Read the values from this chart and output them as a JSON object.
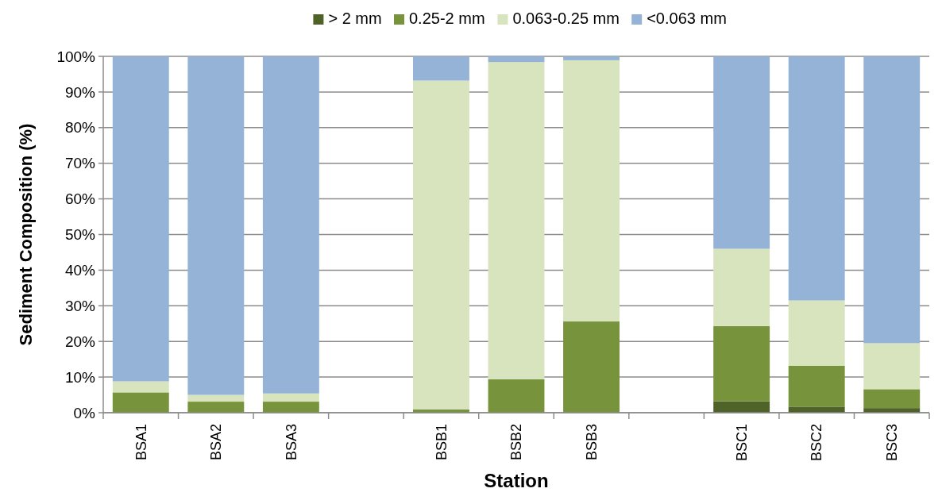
{
  "chart_data": {
    "type": "bar",
    "stacked": true,
    "xlabel": "Station",
    "ylabel": "Sediment Composition (%)",
    "categories": [
      "BSA1",
      "BSA2",
      "BSA3",
      null,
      "BSB1",
      "BSB2",
      "BSB3",
      null,
      "BSC1",
      "BSC2",
      "BSC3"
    ],
    "series": [
      {
        "name": "> 2 mm",
        "color": "#4f6228",
        "values": [
          null,
          0,
          0,
          null,
          0,
          0,
          0,
          null,
          3.2,
          1.7,
          1.3
        ]
      },
      {
        "name": "0.25-2 mm",
        "color": "#77933c",
        "values": [
          5.7,
          3.1,
          3.1,
          null,
          0.9,
          9.4,
          25.6,
          null,
          21.1,
          11.5,
          5.3
        ]
      },
      {
        "name": "0.063-0.25 mm",
        "color": "#d7e4bd",
        "values": [
          3.1,
          1.9,
          2.3,
          null,
          92.3,
          89.0,
          73.3,
          null,
          21.7,
          18.3,
          12.9
        ]
      },
      {
        "name": "<0.063 mm",
        "color": "#95b3d7",
        "values": [
          91.2,
          95.0,
          94.6,
          null,
          6.8,
          1.6,
          1.1,
          null,
          54.0,
          68.5,
          80.5
        ]
      }
    ],
    "ylim": [
      0,
      100
    ],
    "yticks": [
      {
        "value": 0,
        "label": "0%"
      },
      {
        "value": 10,
        "label": "10%"
      },
      {
        "value": 20,
        "label": "20%"
      },
      {
        "value": 30,
        "label": "30%"
      },
      {
        "value": 40,
        "label": "40%"
      },
      {
        "value": 50,
        "label": "50%"
      },
      {
        "value": 60,
        "label": "60%"
      },
      {
        "value": 70,
        "label": "70%"
      },
      {
        "value": 80,
        "label": "80%"
      },
      {
        "value": 90,
        "label": "90%"
      },
      {
        "value": 100,
        "label": "100%"
      }
    ],
    "grid": "y",
    "legend": "top"
  }
}
